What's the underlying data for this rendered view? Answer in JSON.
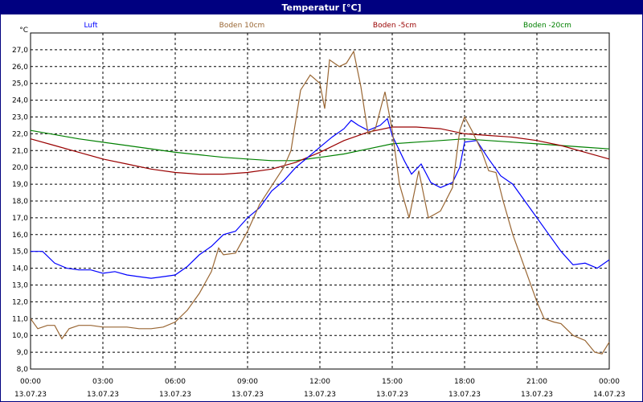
{
  "window": {
    "title": "Temperatur [°C]"
  },
  "chart_data": {
    "type": "line",
    "title": "Temperatur [°C]",
    "ylabel": "°C",
    "ylim": [
      8.0,
      28.0
    ],
    "xlim": [
      0,
      24
    ],
    "grid": true,
    "legend_placement": "top",
    "y_ticks": [
      "8,0",
      "9,0",
      "10,0",
      "11,0",
      "12,0",
      "13,0",
      "14,0",
      "15,0",
      "16,0",
      "17,0",
      "18,0",
      "19,0",
      "20,0",
      "21,0",
      "22,0",
      "23,0",
      "24,0",
      "25,0",
      "26,0",
      "27,0"
    ],
    "x_ticks": [
      {
        "time": "00:00",
        "date": "13.07.23"
      },
      {
        "time": "03:00",
        "date": "13.07.23"
      },
      {
        "time": "06:00",
        "date": "13.07.23"
      },
      {
        "time": "09:00",
        "date": "13.07.23"
      },
      {
        "time": "12:00",
        "date": "13.07.23"
      },
      {
        "time": "15:00",
        "date": "13.07.23"
      },
      {
        "time": "18:00",
        "date": "13.07.23"
      },
      {
        "time": "21:00",
        "date": "13.07.23"
      },
      {
        "time": "00:00",
        "date": "14.07.23"
      }
    ],
    "series": [
      {
        "name": "Luft",
        "color": "#0000ff",
        "points": [
          [
            0,
            15.0
          ],
          [
            0.5,
            15.0
          ],
          [
            1,
            14.3
          ],
          [
            1.5,
            14.0
          ],
          [
            2,
            13.9
          ],
          [
            2.5,
            13.9
          ],
          [
            3,
            13.7
          ],
          [
            3.5,
            13.8
          ],
          [
            4,
            13.6
          ],
          [
            4.5,
            13.5
          ],
          [
            5,
            13.4
          ],
          [
            5.5,
            13.5
          ],
          [
            6,
            13.6
          ],
          [
            6.5,
            14.1
          ],
          [
            7,
            14.8
          ],
          [
            7.5,
            15.3
          ],
          [
            8,
            16.0
          ],
          [
            8.5,
            16.2
          ],
          [
            9,
            17.0
          ],
          [
            9.5,
            17.6
          ],
          [
            10,
            18.6
          ],
          [
            10.5,
            19.2
          ],
          [
            11,
            20.0
          ],
          [
            11.5,
            20.6
          ],
          [
            12,
            21.2
          ],
          [
            12.5,
            21.8
          ],
          [
            13,
            22.3
          ],
          [
            13.3,
            22.8
          ],
          [
            13.6,
            22.5
          ],
          [
            14,
            22.2
          ],
          [
            14.5,
            22.5
          ],
          [
            14.8,
            22.9
          ],
          [
            15,
            21.9
          ],
          [
            15.5,
            20.4
          ],
          [
            15.8,
            19.6
          ],
          [
            16.2,
            20.2
          ],
          [
            16.6,
            19.1
          ],
          [
            17,
            18.8
          ],
          [
            17.5,
            19.1
          ],
          [
            17.8,
            20.0
          ],
          [
            18,
            21.5
          ],
          [
            18.5,
            21.6
          ],
          [
            19,
            20.5
          ],
          [
            19.5,
            19.5
          ],
          [
            20,
            19.0
          ],
          [
            20.5,
            18.0
          ],
          [
            21,
            17.0
          ],
          [
            21.5,
            16.0
          ],
          [
            22,
            15.0
          ],
          [
            22.5,
            14.2
          ],
          [
            23,
            14.3
          ],
          [
            23.5,
            14.0
          ],
          [
            24,
            14.5
          ]
        ]
      },
      {
        "name": "Boden 10cm",
        "color": "#996633",
        "points": [
          [
            0,
            11.0
          ],
          [
            0.3,
            10.4
          ],
          [
            0.7,
            10.6
          ],
          [
            1,
            10.6
          ],
          [
            1.3,
            9.8
          ],
          [
            1.6,
            10.4
          ],
          [
            2,
            10.6
          ],
          [
            2.5,
            10.6
          ],
          [
            3,
            10.5
          ],
          [
            3.5,
            10.5
          ],
          [
            4,
            10.5
          ],
          [
            4.5,
            10.4
          ],
          [
            5,
            10.4
          ],
          [
            5.5,
            10.5
          ],
          [
            6,
            10.8
          ],
          [
            6.5,
            11.5
          ],
          [
            7,
            12.5
          ],
          [
            7.5,
            13.8
          ],
          [
            7.8,
            15.2
          ],
          [
            8,
            14.8
          ],
          [
            8.5,
            14.9
          ],
          [
            9,
            16.2
          ],
          [
            9.5,
            17.8
          ],
          [
            10,
            18.9
          ],
          [
            10.5,
            20.0
          ],
          [
            10.8,
            21.0
          ],
          [
            11.2,
            24.6
          ],
          [
            11.6,
            25.5
          ],
          [
            12,
            25.0
          ],
          [
            12.2,
            23.5
          ],
          [
            12.4,
            26.4
          ],
          [
            12.8,
            26.0
          ],
          [
            13.1,
            26.2
          ],
          [
            13.4,
            26.9
          ],
          [
            13.7,
            24.8
          ],
          [
            14,
            22.0
          ],
          [
            14.3,
            22.3
          ],
          [
            14.7,
            24.5
          ],
          [
            15,
            22.2
          ],
          [
            15.3,
            19.0
          ],
          [
            15.7,
            17.0
          ],
          [
            16.1,
            19.8
          ],
          [
            16.5,
            17.0
          ],
          [
            17,
            17.4
          ],
          [
            17.5,
            18.8
          ],
          [
            17.8,
            22.2
          ],
          [
            18,
            23.0
          ],
          [
            18.3,
            22.2
          ],
          [
            18.7,
            21.0
          ],
          [
            19,
            19.8
          ],
          [
            19.3,
            19.7
          ],
          [
            19.6,
            18.0
          ],
          [
            20,
            16.0
          ],
          [
            20.5,
            14.0
          ],
          [
            21,
            12.0
          ],
          [
            21.3,
            11.0
          ],
          [
            21.7,
            10.8
          ],
          [
            22,
            10.7
          ],
          [
            22.5,
            10.0
          ],
          [
            23,
            9.7
          ],
          [
            23.4,
            9.0
          ],
          [
            23.7,
            8.9
          ],
          [
            24,
            9.6
          ]
        ]
      },
      {
        "name": "Boden -5cm",
        "color": "#990000",
        "points": [
          [
            0,
            21.7
          ],
          [
            1,
            21.3
          ],
          [
            2,
            20.9
          ],
          [
            3,
            20.5
          ],
          [
            4,
            20.2
          ],
          [
            5,
            19.9
          ],
          [
            6,
            19.7
          ],
          [
            7,
            19.6
          ],
          [
            8,
            19.6
          ],
          [
            9,
            19.7
          ],
          [
            10,
            19.9
          ],
          [
            11,
            20.3
          ],
          [
            12,
            20.9
          ],
          [
            13,
            21.6
          ],
          [
            14,
            22.1
          ],
          [
            15,
            22.4
          ],
          [
            16,
            22.4
          ],
          [
            17,
            22.3
          ],
          [
            18,
            22.0
          ],
          [
            19,
            21.9
          ],
          [
            20,
            21.8
          ],
          [
            21,
            21.6
          ],
          [
            22,
            21.3
          ],
          [
            23,
            20.9
          ],
          [
            24,
            20.5
          ]
        ]
      },
      {
        "name": "Boden -20cm",
        "color": "#008000",
        "points": [
          [
            0,
            22.2
          ],
          [
            2,
            21.7
          ],
          [
            4,
            21.3
          ],
          [
            6,
            20.9
          ],
          [
            8,
            20.6
          ],
          [
            9,
            20.5
          ],
          [
            10,
            20.4
          ],
          [
            11,
            20.4
          ],
          [
            12,
            20.6
          ],
          [
            13,
            20.8
          ],
          [
            14,
            21.1
          ],
          [
            15,
            21.4
          ],
          [
            16,
            21.5
          ],
          [
            17,
            21.6
          ],
          [
            18,
            21.7
          ],
          [
            19,
            21.6
          ],
          [
            20,
            21.5
          ],
          [
            21,
            21.4
          ],
          [
            22,
            21.3
          ],
          [
            23,
            21.2
          ],
          [
            24,
            21.1
          ]
        ]
      }
    ]
  }
}
